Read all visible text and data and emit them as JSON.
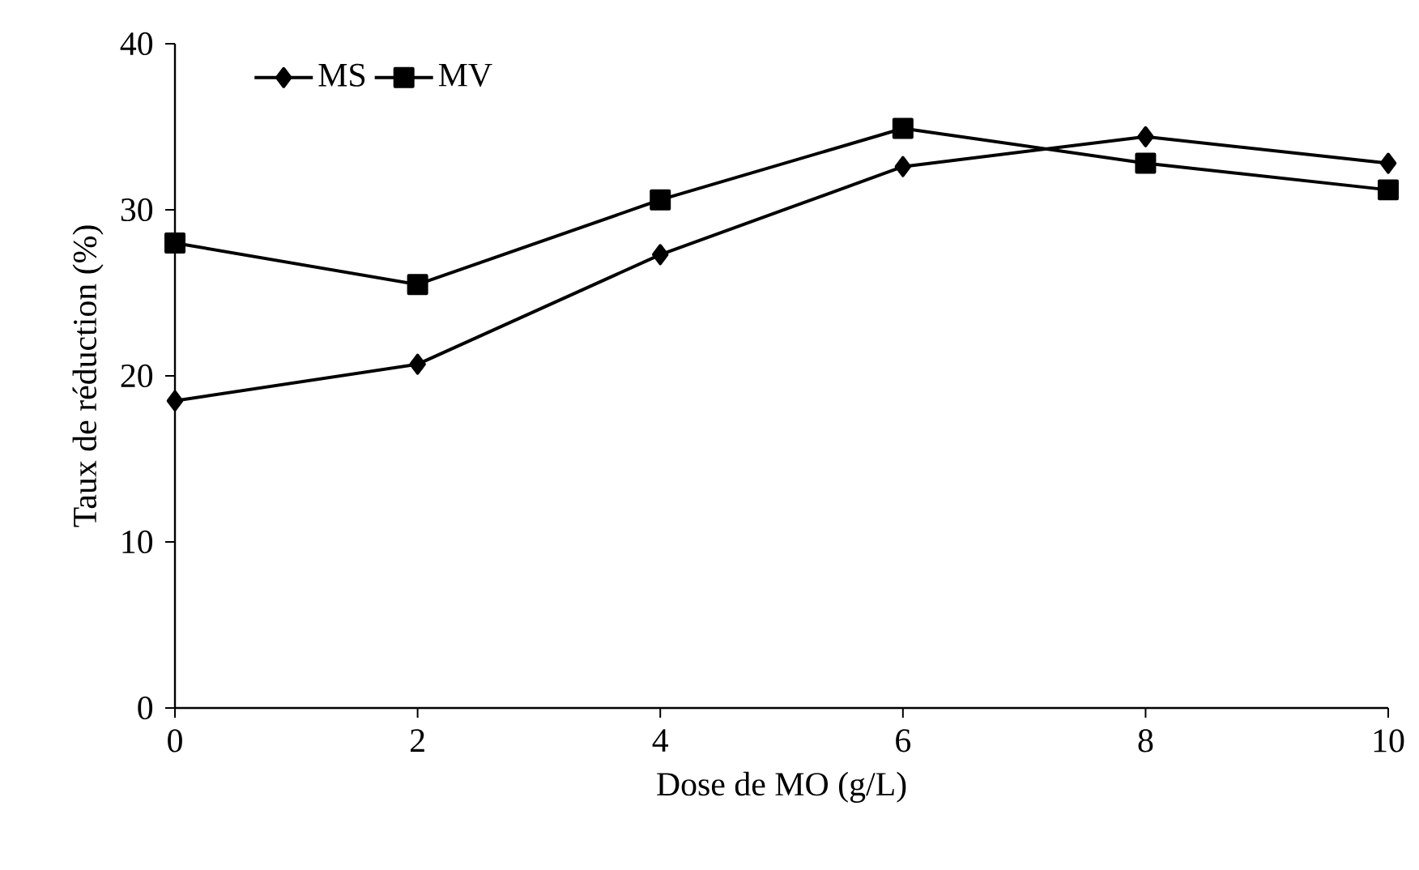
{
  "chart_data": {
    "type": "line",
    "xlabel": "Dose de MO (g/L)",
    "ylabel": "Taux de réduction (%)",
    "x": [
      0,
      2,
      4,
      6,
      8,
      10
    ],
    "series": [
      {
        "name": "MS",
        "color": "#000000",
        "marker": "diamond",
        "values": [
          18.5,
          20.7,
          27.3,
          32.6,
          34.4,
          32.8
        ]
      },
      {
        "name": "MV",
        "color": "#000000",
        "marker": "square",
        "values": [
          28.0,
          25.5,
          30.6,
          34.9,
          32.8,
          31.2
        ]
      }
    ],
    "xlim": [
      0,
      10
    ],
    "xticks": [
      0,
      2,
      4,
      6,
      8,
      10
    ],
    "ylim": [
      0,
      40
    ],
    "yticks": [
      0,
      10,
      20,
      30,
      40
    ],
    "grid": false,
    "legend": "top left",
    "line_style": "solid"
  }
}
